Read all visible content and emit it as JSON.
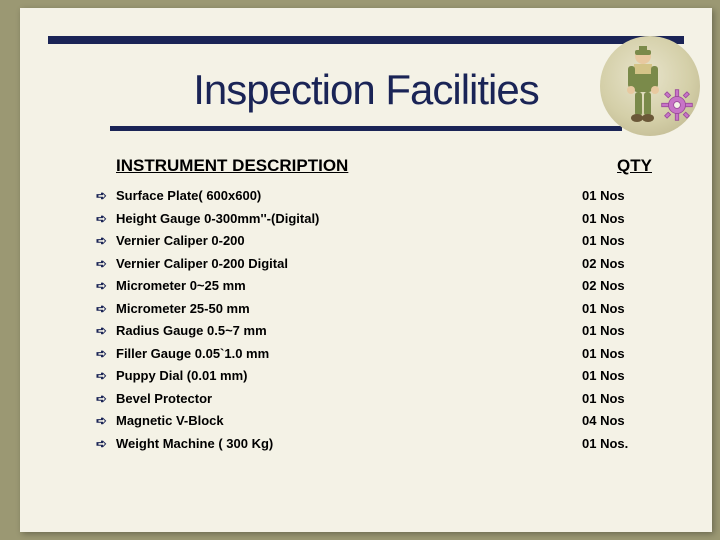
{
  "title": "Inspection Facilities",
  "headers": {
    "desc": "INSTRUMENT DESCRIPTION",
    "qty": "QTY"
  },
  "rows": [
    {
      "desc": "Surface Plate( 600x600)",
      "qty": "01 Nos"
    },
    {
      "desc": "Height Gauge 0-300mm''-(Digital)",
      "qty": "01 Nos"
    },
    {
      "desc": "Vernier Caliper  0-200",
      "qty": "01 Nos"
    },
    {
      "desc": "Vernier Caliper 0-200 Digital",
      "qty": "02 Nos"
    },
    {
      "desc": "Micrometer 0~25 mm",
      "qty": "02 Nos"
    },
    {
      "desc": "Micrometer 25-50 mm",
      "qty": "01 Nos"
    },
    {
      "desc": "Radius Gauge 0.5~7 mm",
      "qty": "01 Nos"
    },
    {
      "desc": "Filler Gauge 0.05`1.0 mm",
      "qty": "01 Nos"
    },
    {
      "desc": "Puppy Dial (0.01 mm)",
      "qty": "01 Nos"
    },
    {
      "desc": "Bevel Protector",
      "qty": "01 Nos"
    },
    {
      "desc": "Magnetic V-Block",
      "qty": "04 Nos"
    },
    {
      "desc": "Weight Machine ( 300 Kg)",
      "qty": "01 Nos."
    }
  ],
  "colors": {
    "frame_bg": "#9b9873",
    "slide_bg": "#f4f2e6",
    "accent": "#1a2456"
  }
}
